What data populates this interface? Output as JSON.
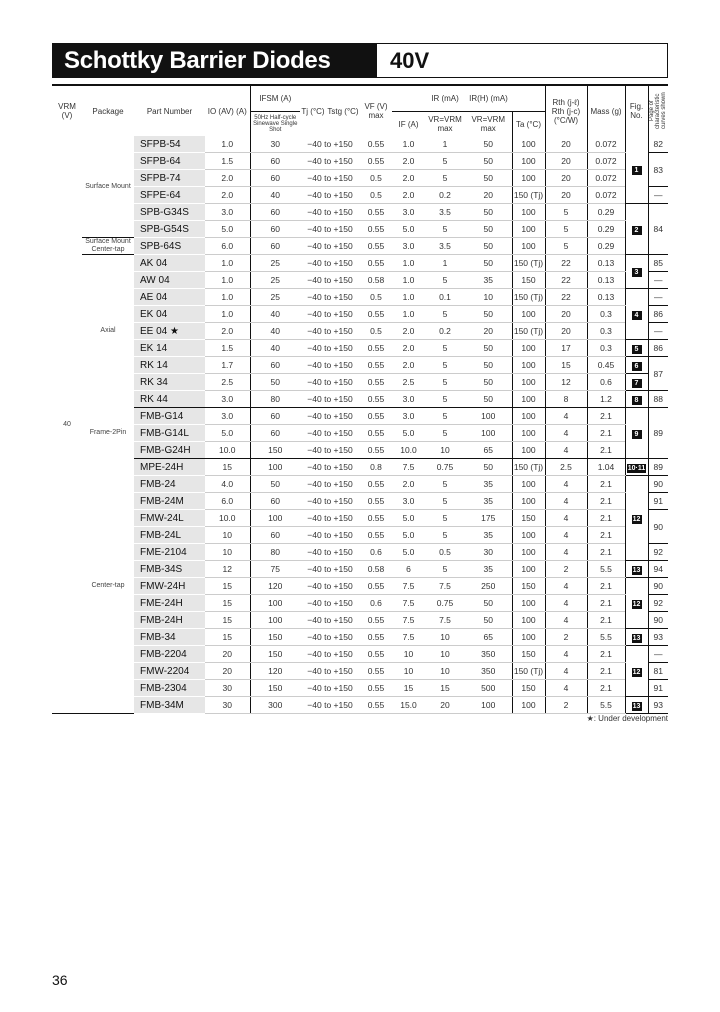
{
  "header": {
    "title": "Schottky Barrier Diodes",
    "voltage": "40V"
  },
  "columns": {
    "vrm": "VRM (V)",
    "package": "Package",
    "part": "Part Number",
    "io": "IO (AV) (A)",
    "ifsm": "IFSM (A)",
    "ifsm_sub": "50Hz Half-cycle Sinewave Single Shot",
    "tj": "Tj (°C)",
    "tstg": "Tstg (°C)",
    "vf": "VF (V) max",
    "ir_group": "IR (mA)",
    "irh_group": "IR(H) (mA)",
    "if": "IF (A)",
    "ir_sub": "VR=VRM max",
    "irh_sub": "VR=VRM max",
    "ta": "Ta (°C)",
    "rth": "Rth (j-ℓ) Rth (j-c) (°C/W)",
    "mass": "Mass (g)",
    "fig": "Fig. No.",
    "ref": "Page of characteristic curves shown"
  },
  "vrm_value": "40",
  "packages": [
    {
      "label": "Surface Mount",
      "rows": 6
    },
    {
      "label": "Surface Mount Center-tap",
      "rows": 1
    },
    {
      "label": "Axial",
      "rows": 9
    },
    {
      "label": "Frame-2Pin",
      "rows": 3
    },
    {
      "label": "Center-tap",
      "rows": 15
    }
  ],
  "rows": [
    [
      "SFPB-54",
      "1.0",
      "30",
      "−40 to +150",
      "0.55",
      "1.0",
      "1",
      "50",
      "100",
      "20",
      "0.072"
    ],
    [
      "SFPB-64",
      "1.5",
      "60",
      "−40 to +150",
      "0.55",
      "2.0",
      "5",
      "50",
      "100",
      "20",
      "0.072"
    ],
    [
      "SFPB-74",
      "2.0",
      "60",
      "−40 to +150",
      "0.5",
      "2.0",
      "5",
      "50",
      "100",
      "20",
      "0.072"
    ],
    [
      "SFPE-64",
      "2.0",
      "40",
      "−40 to +150",
      "0.5",
      "2.0",
      "0.2",
      "20",
      "150 (Tj)",
      "20",
      "0.072"
    ],
    [
      "SPB-G34S",
      "3.0",
      "60",
      "−40 to +150",
      "0.55",
      "3.0",
      "3.5",
      "50",
      "100",
      "5",
      "0.29"
    ],
    [
      "SPB-G54S",
      "5.0",
      "60",
      "−40 to +150",
      "0.55",
      "5.0",
      "5",
      "50",
      "100",
      "5",
      "0.29"
    ],
    [
      "SPB-64S",
      "6.0",
      "60",
      "−40 to +150",
      "0.55",
      "3.0",
      "3.5",
      "50",
      "100",
      "5",
      "0.29"
    ],
    [
      "AK 04",
      "1.0",
      "25",
      "−40 to +150",
      "0.55",
      "1.0",
      "1",
      "50",
      "150 (Tj)",
      "22",
      "0.13"
    ],
    [
      "AW 04",
      "1.0",
      "25",
      "−40 to +150",
      "0.58",
      "1.0",
      "5",
      "35",
      "150",
      "22",
      "0.13"
    ],
    [
      "AE 04",
      "1.0",
      "25",
      "−40 to +150",
      "0.5",
      "1.0",
      "0.1",
      "10",
      "150 (Tj)",
      "22",
      "0.13"
    ],
    [
      "EK 04",
      "1.0",
      "40",
      "−40 to +150",
      "0.55",
      "1.0",
      "5",
      "50",
      "100",
      "20",
      "0.3"
    ],
    [
      "EE 04 ★",
      "2.0",
      "40",
      "−40 to +150",
      "0.5",
      "2.0",
      "0.2",
      "20",
      "150 (Tj)",
      "20",
      "0.3"
    ],
    [
      "EK 14",
      "1.5",
      "40",
      "−40 to +150",
      "0.55",
      "2.0",
      "5",
      "50",
      "100",
      "17",
      "0.3"
    ],
    [
      "RK 14",
      "1.7",
      "60",
      "−40 to +150",
      "0.55",
      "2.0",
      "5",
      "50",
      "100",
      "15",
      "0.45"
    ],
    [
      "RK 34",
      "2.5",
      "50",
      "−40 to +150",
      "0.55",
      "2.5",
      "5",
      "50",
      "100",
      "12",
      "0.6"
    ],
    [
      "RK 44",
      "3.0",
      "80",
      "−40 to +150",
      "0.55",
      "3.0",
      "5",
      "50",
      "100",
      "8",
      "1.2"
    ],
    [
      "FMB-G14",
      "3.0",
      "60",
      "−40 to +150",
      "0.55",
      "3.0",
      "5",
      "100",
      "100",
      "4",
      "2.1"
    ],
    [
      "FMB-G14L",
      "5.0",
      "60",
      "−40 to +150",
      "0.55",
      "5.0",
      "5",
      "100",
      "100",
      "4",
      "2.1"
    ],
    [
      "FMB-G24H",
      "10.0",
      "150",
      "−40 to +150",
      "0.55",
      "10.0",
      "10",
      "65",
      "100",
      "4",
      "2.1"
    ],
    [
      "MPE-24H",
      "15",
      "100",
      "−40 to +150",
      "0.8",
      "7.5",
      "0.75",
      "50",
      "150 (Tj)",
      "2.5",
      "1.04"
    ],
    [
      "FMB-24",
      "4.0",
      "50",
      "−40 to +150",
      "0.55",
      "2.0",
      "5",
      "35",
      "100",
      "4",
      "2.1"
    ],
    [
      "FMB-24M",
      "6.0",
      "60",
      "−40 to +150",
      "0.55",
      "3.0",
      "5",
      "35",
      "100",
      "4",
      "2.1"
    ],
    [
      "FMW-24L",
      "10.0",
      "100",
      "−40 to +150",
      "0.55",
      "5.0",
      "5",
      "175",
      "150",
      "4",
      "2.1"
    ],
    [
      "FMB-24L",
      "10",
      "60",
      "−40 to +150",
      "0.55",
      "5.0",
      "5",
      "35",
      "100",
      "4",
      "2.1"
    ],
    [
      "FME-2104",
      "10",
      "80",
      "−40 to +150",
      "0.6",
      "5.0",
      "0.5",
      "30",
      "100",
      "4",
      "2.1"
    ],
    [
      "FMB-34S",
      "12",
      "75",
      "−40 to +150",
      "0.58",
      "6",
      "5",
      "35",
      "100",
      "2",
      "5.5"
    ],
    [
      "FMW-24H",
      "15",
      "120",
      "−40 to +150",
      "0.55",
      "7.5",
      "7.5",
      "250",
      "150",
      "4",
      "2.1"
    ],
    [
      "FME-24H",
      "15",
      "100",
      "−40 to +150",
      "0.6",
      "7.5",
      "0.75",
      "50",
      "100",
      "4",
      "2.1"
    ],
    [
      "FMB-24H",
      "15",
      "100",
      "−40 to +150",
      "0.55",
      "7.5",
      "7.5",
      "50",
      "100",
      "4",
      "2.1"
    ],
    [
      "FMB-34",
      "15",
      "150",
      "−40 to +150",
      "0.55",
      "7.5",
      "10",
      "65",
      "100",
      "2",
      "5.5"
    ],
    [
      "FMB-2204",
      "20",
      "150",
      "−40 to +150",
      "0.55",
      "10",
      "10",
      "350",
      "150",
      "4",
      "2.1"
    ],
    [
      "FMW-2204",
      "20",
      "120",
      "−40 to +150",
      "0.55",
      "10",
      "10",
      "350",
      "150 (Tj)",
      "4",
      "2.1"
    ],
    [
      "FMB-2304",
      "30",
      "150",
      "−40 to +150",
      "0.55",
      "15",
      "15",
      "500",
      "150",
      "4",
      "2.1"
    ],
    [
      "FMB-34M",
      "30",
      "300",
      "−40 to +150",
      "0.55",
      "15.0",
      "20",
      "100",
      "100",
      "2",
      "5.5"
    ]
  ],
  "figs": [
    {
      "label": "1",
      "rows": 4
    },
    {
      "label": "2",
      "rows": 3
    },
    {
      "label": "3",
      "rows": 2
    },
    {
      "label": "4",
      "rows": 3
    },
    {
      "label": "5",
      "rows": 1
    },
    {
      "label": "6",
      "rows": 1
    },
    {
      "label": "7",
      "rows": 1
    },
    {
      "label": "8",
      "rows": 1
    },
    {
      "label": "9",
      "rows": 3
    },
    {
      "label": "10·11",
      "rows": 1
    },
    {
      "label": "12",
      "rows": 5
    },
    {
      "label": "13",
      "rows": 1
    },
    {
      "label": "12",
      "rows": 3
    },
    {
      "label": "13",
      "rows": 1
    },
    {
      "label": "12",
      "rows": 3
    },
    {
      "label": "13",
      "rows": 1
    }
  ],
  "refs": [
    {
      "label": "82",
      "rows": 1
    },
    {
      "label": "83",
      "rows": 2
    },
    {
      "label": "—",
      "rows": 1
    },
    {
      "label": "84",
      "rows": 3
    },
    {
      "label": "85",
      "rows": 1
    },
    {
      "label": "—",
      "rows": 1
    },
    {
      "label": "—",
      "rows": 1
    },
    {
      "label": "86",
      "rows": 1
    },
    {
      "label": "—",
      "rows": 1
    },
    {
      "label": "86",
      "rows": 1
    },
    {
      "label": "87",
      "rows": 2
    },
    {
      "label": "88",
      "rows": 1
    },
    {
      "label": "89",
      "rows": 3
    },
    {
      "label": "89",
      "rows": 1
    },
    {
      "label": "90",
      "rows": 1
    },
    {
      "label": "91",
      "rows": 1
    },
    {
      "label": "90",
      "rows": 2
    },
    {
      "label": "92",
      "rows": 1
    },
    {
      "label": "94",
      "rows": 1
    },
    {
      "label": "90",
      "rows": 1
    },
    {
      "label": "92",
      "rows": 1
    },
    {
      "label": "90",
      "rows": 1
    },
    {
      "label": "93",
      "rows": 1
    },
    {
      "label": "—",
      "rows": 1
    },
    {
      "label": "81",
      "rows": 1
    },
    {
      "label": "91",
      "rows": 1
    },
    {
      "label": "93",
      "rows": 1
    }
  ],
  "footnote": "★: Under development",
  "page_number": "36"
}
